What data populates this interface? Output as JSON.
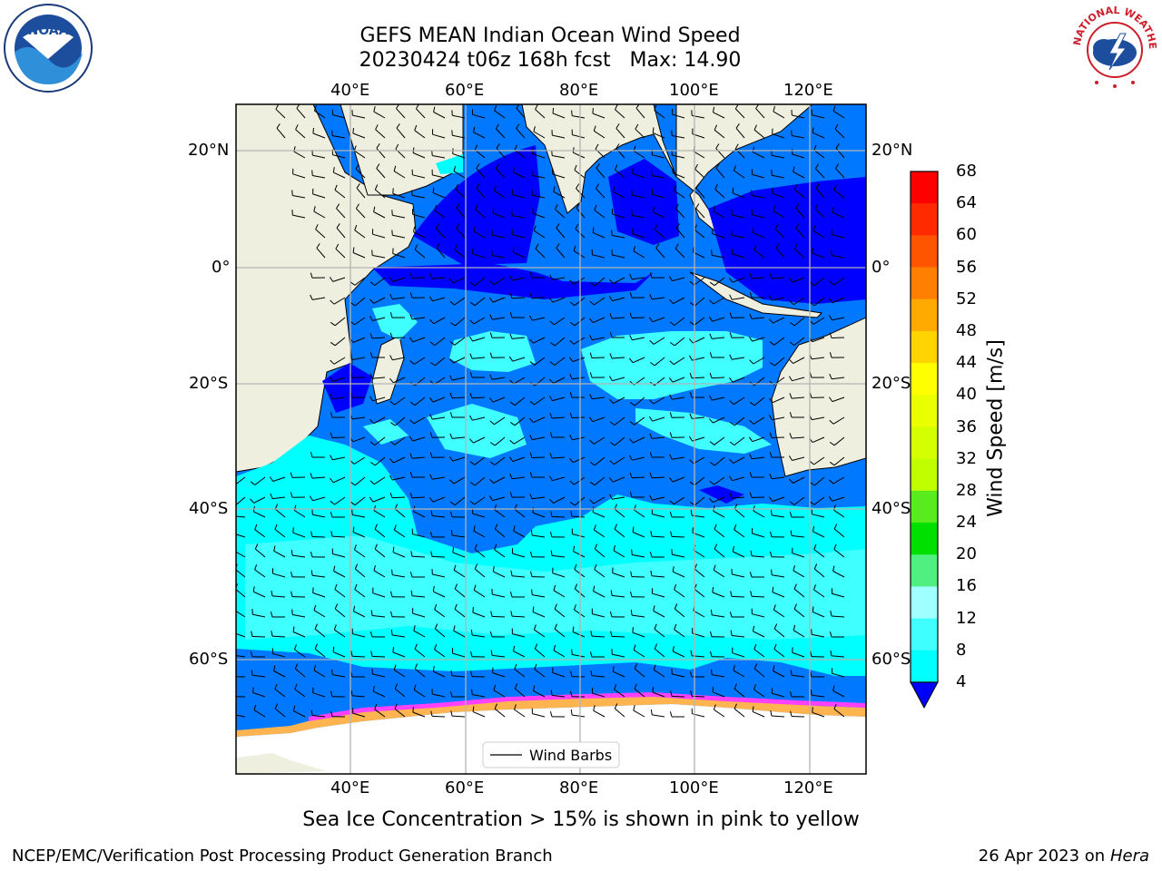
{
  "header": {
    "title_line1": "GEFS MEAN Indian Ocean Wind Speed",
    "title_line2": "20230424 t06z 168h fcst   Max: 14.90"
  },
  "logos": {
    "left_icon": "noaa-logo-icon",
    "right_icon": "national-weather-service-logo-icon",
    "noaa_text": "NOAA",
    "nws_text": "NATIONAL WEATHER SERVICE"
  },
  "map": {
    "top_axis_labels": [
      "40°E",
      "60°E",
      "80°E",
      "100°E",
      "120°E"
    ],
    "bottom_axis_labels": [
      "40°E",
      "60°E",
      "80°E",
      "100°E",
      "120°E"
    ],
    "left_axis_labels": [
      "20°N",
      "0°",
      "20°S",
      "40°S",
      "60°S"
    ],
    "right_axis_labels": [
      "20°N",
      "0°",
      "20°S",
      "40°S",
      "60°S"
    ],
    "legend_label": "Wind Barbs",
    "colors": {
      "land": "#efefdf",
      "antarctic": "#ffffff",
      "grid": "#b4b4b4"
    }
  },
  "colorbar": {
    "title": "Wind Speed [m/s]",
    "ticks": [
      "68",
      "64",
      "60",
      "56",
      "52",
      "48",
      "44",
      "40",
      "36",
      "32",
      "28",
      "24",
      "20",
      "16",
      "12",
      "8",
      "4"
    ],
    "colors": [
      "#ff0000",
      "#ff2a00",
      "#ff5500",
      "#ff8000",
      "#ffaa00",
      "#ffd400",
      "#ffff00",
      "#eaff00",
      "#d4ff00",
      "#bfff00",
      "#5aeb1e",
      "#00e000",
      "#50f080",
      "#a0ffff",
      "#40ffff",
      "#00ffff",
      "#0078ff"
    ],
    "under_color": "#0000ff"
  },
  "subtitle": "Sea Ice Concentration > 15% is shown in pink to yellow",
  "footer": {
    "left": "NCEP/EMC/Verification Post Processing Product Generation Branch",
    "right_date": "26 Apr 2023 on ",
    "right_host": "Hera"
  }
}
